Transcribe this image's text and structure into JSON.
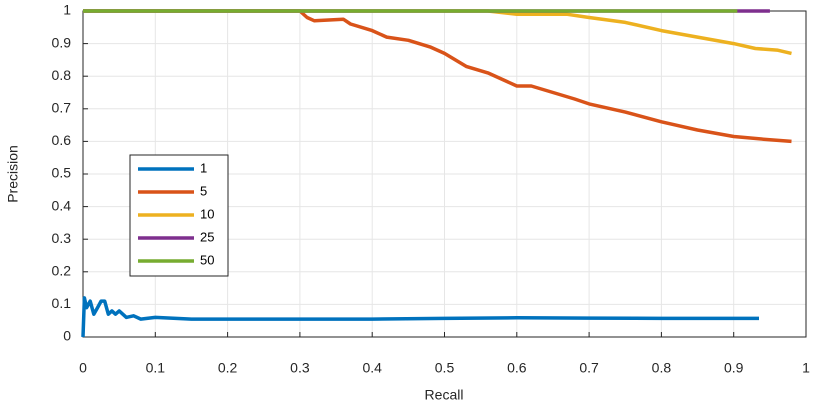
{
  "chart_data": {
    "type": "line",
    "x_label": "Recall",
    "y_label": "Precision",
    "xlim": [
      0,
      1
    ],
    "ylim": [
      0,
      1
    ],
    "xticks": [
      0,
      0.1,
      0.2,
      0.3,
      0.4,
      0.5,
      0.6,
      0.7,
      0.8,
      0.9,
      1
    ],
    "yticks": [
      0,
      0.1,
      0.2,
      0.3,
      0.4,
      0.5,
      0.6,
      0.7,
      0.8,
      0.9,
      1
    ],
    "grid": true,
    "legend": "center left",
    "series": [
      {
        "name": "1",
        "color": "#0072BD",
        "x": [
          0,
          0.002,
          0.005,
          0.01,
          0.015,
          0.02,
          0.025,
          0.03,
          0.035,
          0.04,
          0.045,
          0.05,
          0.06,
          0.07,
          0.08,
          0.1,
          0.15,
          0.2,
          0.3,
          0.4,
          0.5,
          0.6,
          0.7,
          0.8,
          0.935
        ],
        "values": [
          0,
          0.12,
          0.09,
          0.11,
          0.07,
          0.09,
          0.11,
          0.11,
          0.07,
          0.08,
          0.07,
          0.08,
          0.06,
          0.065,
          0.055,
          0.06,
          0.055,
          0.055,
          0.055,
          0.055,
          0.057,
          0.059,
          0.058,
          0.057,
          0.057
        ]
      },
      {
        "name": "5",
        "color": "#D95319",
        "x": [
          0,
          0.29,
          0.3,
          0.31,
          0.32,
          0.36,
          0.37,
          0.4,
          0.42,
          0.45,
          0.48,
          0.5,
          0.53,
          0.56,
          0.6,
          0.62,
          0.65,
          0.68,
          0.7,
          0.75,
          0.8,
          0.85,
          0.9,
          0.95,
          0.98
        ],
        "values": [
          1,
          1,
          1,
          0.98,
          0.97,
          0.975,
          0.96,
          0.94,
          0.92,
          0.91,
          0.89,
          0.87,
          0.83,
          0.81,
          0.77,
          0.77,
          0.75,
          0.73,
          0.715,
          0.69,
          0.66,
          0.635,
          0.615,
          0.605,
          0.6
        ]
      },
      {
        "name": "10",
        "color": "#EDB120",
        "x": [
          0,
          0.56,
          0.6,
          0.67,
          0.7,
          0.75,
          0.8,
          0.85,
          0.9,
          0.93,
          0.96,
          0.98
        ],
        "values": [
          1,
          1,
          0.99,
          0.99,
          0.98,
          0.965,
          0.94,
          0.92,
          0.9,
          0.885,
          0.88,
          0.87
        ]
      },
      {
        "name": "25",
        "color": "#7E2F8E",
        "x": [
          0,
          0.95
        ],
        "values": [
          1,
          1
        ]
      },
      {
        "name": "50",
        "color": "#77AC30",
        "x": [
          0,
          0.905
        ],
        "values": [
          1,
          1
        ]
      }
    ]
  }
}
